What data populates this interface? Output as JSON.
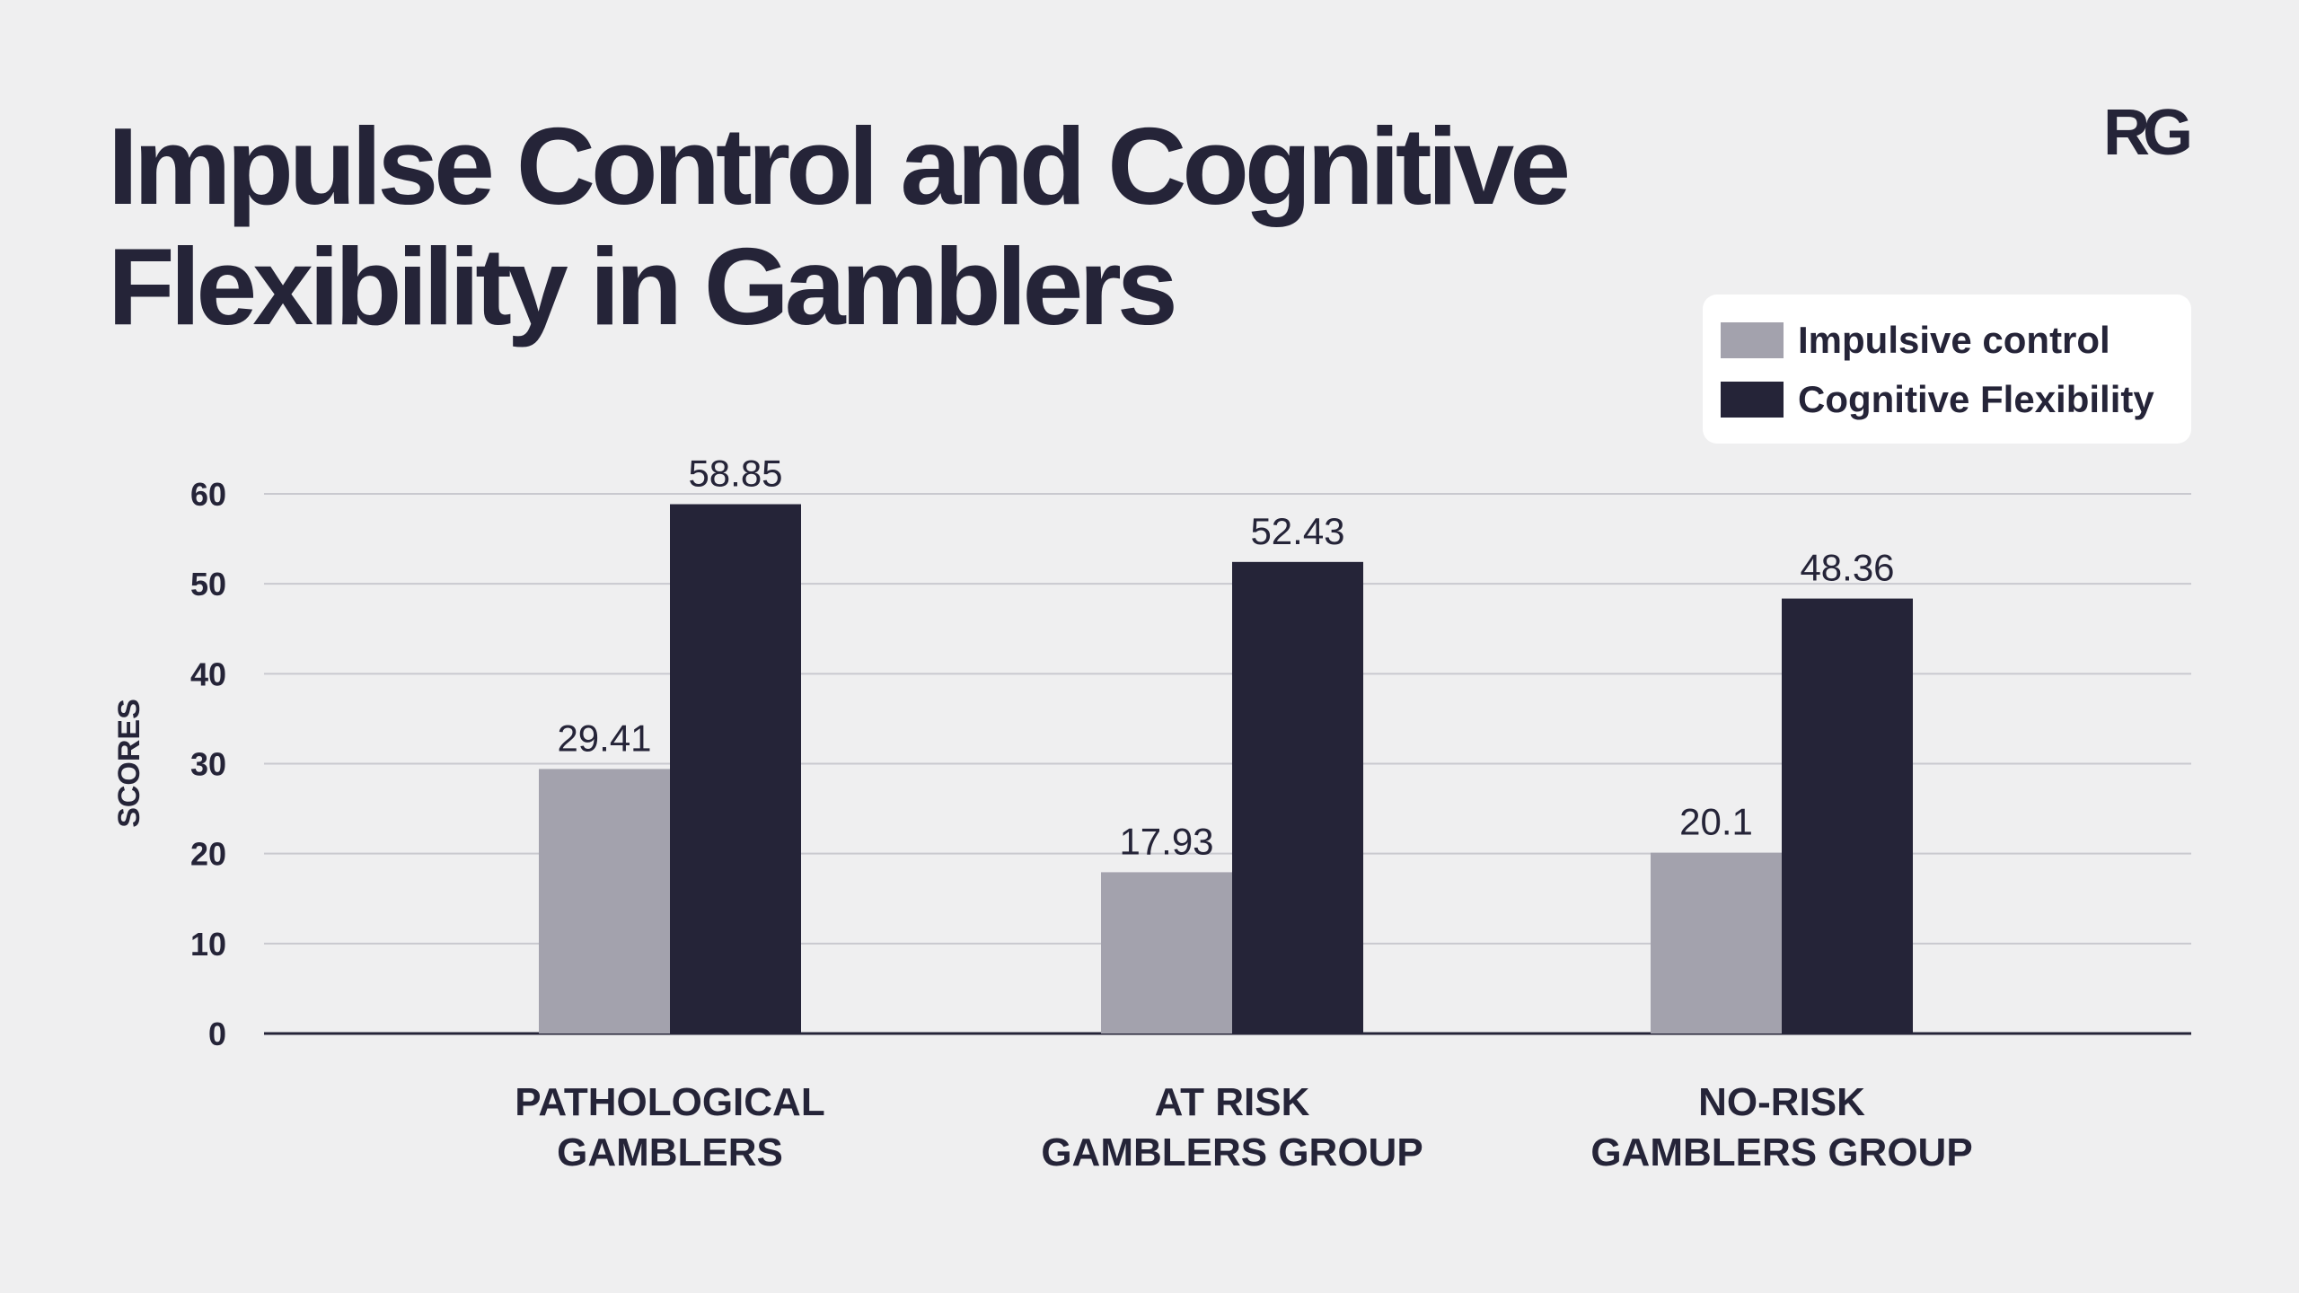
{
  "header": {
    "title_line1": "Impulse Control and Cognitive",
    "title_line2": "Flexibility in Gamblers",
    "logo_text": "RG"
  },
  "colors": {
    "background": "#efeff0",
    "text": "#252438",
    "impulsive": "#a3a2ad",
    "cognitive": "#252438",
    "grid": "#c9c9cf"
  },
  "chart_data": {
    "type": "bar",
    "title": "Impulse Control and Cognitive Flexibility in Gamblers",
    "ylabel": "SCORES",
    "xlabel": "",
    "ylim": [
      0,
      60
    ],
    "yticks": [
      0,
      10,
      20,
      30,
      40,
      50,
      60
    ],
    "grid": true,
    "legend_position": "top-right",
    "categories": [
      [
        "PATHOLOGICAL",
        "GAMBLERS"
      ],
      [
        "AT RISK",
        "GAMBLERS GROUP"
      ],
      [
        "NO-RISK",
        "GAMBLERS GROUP"
      ]
    ],
    "series": [
      {
        "name": "Impulsive control",
        "color": "#a3a2ad",
        "values": [
          29.41,
          17.93,
          20.1
        ],
        "labels": [
          "29.41",
          "17.93",
          "20.1"
        ]
      },
      {
        "name": "Cognitive Flexibility",
        "color": "#252438",
        "values": [
          58.85,
          52.43,
          48.36
        ],
        "labels": [
          "58.85",
          "52.43",
          "48.36"
        ]
      }
    ]
  }
}
